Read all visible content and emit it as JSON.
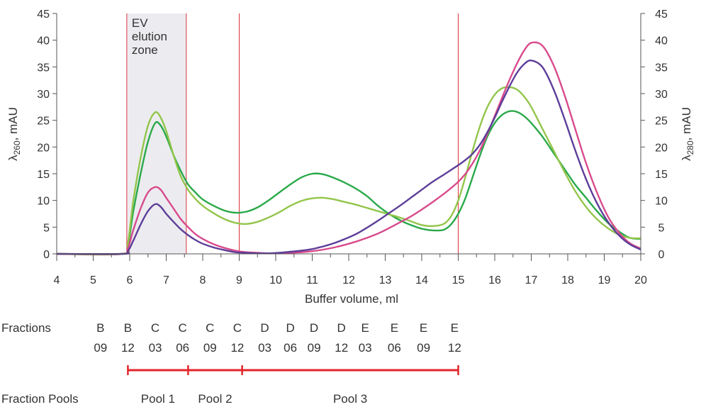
{
  "chart_data": {
    "type": "line",
    "xlabel": "Buffer volume, ml",
    "ylabel_left": {
      "main": "λ",
      "sub": "260",
      "unit": ", mAU"
    },
    "ylabel_right": {
      "main": "λ",
      "sub": "280",
      "unit": ", mAU"
    },
    "xlim": [
      4,
      20
    ],
    "ylim": [
      0,
      45
    ],
    "xticks": [
      4,
      5,
      6,
      7,
      8,
      9,
      10,
      11,
      12,
      13,
      14,
      15,
      16,
      17,
      18,
      19,
      20
    ],
    "yticks": [
      0,
      5,
      10,
      15,
      20,
      25,
      30,
      35,
      40,
      45
    ],
    "grid": false,
    "legend": "none",
    "annotations": {
      "ev_zone": {
        "lines": [
          "EV",
          "elution",
          "zone"
        ],
        "x_start": 5.92,
        "x_end": 7.55
      },
      "vertical_lines": [
        9,
        15
      ]
    },
    "series": [
      {
        "color": "#2aa94a",
        "x": [
          4,
          5.8,
          5.95,
          6.1,
          6.3,
          6.5,
          6.7,
          6.85,
          7.0,
          7.2,
          7.4,
          7.6,
          7.8,
          8.0,
          8.3,
          8.6,
          8.9,
          9.2,
          9.5,
          9.8,
          10.1,
          10.4,
          10.7,
          11.0,
          11.3,
          11.6,
          11.9,
          12.2,
          12.5,
          12.8,
          13.1,
          13.4,
          13.7,
          14.0,
          14.3,
          14.6,
          14.8,
          15.0,
          15.2,
          15.4,
          15.6,
          15.8,
          16.0,
          16.2,
          16.4,
          16.6,
          16.8,
          17.0,
          17.3,
          17.6,
          17.9,
          18.2,
          18.5,
          18.8,
          19.1,
          19.4,
          19.7,
          20.0
        ],
        "values": [
          0,
          0,
          1.5,
          8,
          15,
          21,
          24.5,
          24,
          22,
          18.5,
          15.5,
          13,
          11.5,
          10.2,
          9.0,
          8.1,
          7.7,
          7.9,
          8.7,
          10.0,
          11.5,
          13.0,
          14.3,
          15.0,
          14.9,
          14.2,
          13.3,
          12.2,
          10.8,
          9.0,
          7.5,
          6.3,
          5.4,
          4.7,
          4.4,
          4.5,
          5.5,
          7.5,
          10.5,
          14.5,
          18.5,
          22.0,
          24.5,
          26.0,
          26.7,
          26.6,
          25.8,
          24.5,
          22.0,
          19.0,
          16.0,
          13.0,
          10.5,
          8.0,
          5.8,
          4.2,
          3.0,
          2.8
        ]
      },
      {
        "color": "#93c54b",
        "x": [
          4,
          5.8,
          5.95,
          6.1,
          6.3,
          6.5,
          6.7,
          6.85,
          7.0,
          7.2,
          7.4,
          7.6,
          7.8,
          8.0,
          8.3,
          8.6,
          8.9,
          9.2,
          9.5,
          9.8,
          10.1,
          10.4,
          10.7,
          11.0,
          11.3,
          11.6,
          11.9,
          12.2,
          12.5,
          12.8,
          13.1,
          13.4,
          13.7,
          14.0,
          14.3,
          14.6,
          14.8,
          15.0,
          15.2,
          15.4,
          15.6,
          15.8,
          16.0,
          16.2,
          16.4,
          16.6,
          16.8,
          17.0,
          17.3,
          17.6,
          17.9,
          18.2,
          18.5,
          18.8,
          19.1,
          19.4,
          19.7,
          20.0
        ],
        "values": [
          0,
          0,
          2,
          10,
          18,
          24,
          26.5,
          25.5,
          23,
          18.5,
          14.5,
          12,
          10.3,
          9.0,
          7.6,
          6.5,
          5.8,
          5.6,
          6.0,
          6.8,
          7.8,
          9.0,
          9.9,
          10.4,
          10.5,
          10.2,
          9.7,
          9.2,
          8.6,
          8.0,
          7.4,
          6.8,
          6.1,
          5.4,
          5.2,
          5.6,
          7.0,
          10.0,
          14.5,
          19.5,
          24.0,
          27.5,
          29.8,
          31.0,
          31.2,
          30.8,
          29.5,
          27.5,
          23.5,
          19.5,
          15.5,
          11.8,
          8.8,
          6.5,
          4.8,
          3.6,
          3.0,
          2.9
        ]
      },
      {
        "color": "#d84a8c",
        "x": [
          4,
          5.8,
          5.95,
          6.1,
          6.3,
          6.5,
          6.7,
          6.85,
          7.0,
          7.2,
          7.4,
          7.6,
          7.8,
          8.0,
          8.3,
          8.6,
          8.9,
          9.2,
          9.5,
          9.8,
          10.1,
          10.4,
          10.7,
          11.0,
          11.3,
          11.6,
          11.9,
          12.2,
          12.5,
          12.8,
          13.1,
          13.4,
          13.7,
          14.0,
          14.3,
          14.6,
          14.8,
          15.0,
          15.2,
          15.4,
          15.6,
          15.8,
          16.0,
          16.2,
          16.4,
          16.6,
          16.8,
          17.0,
          17.3,
          17.6,
          17.9,
          18.2,
          18.5,
          18.8,
          19.1,
          19.4,
          19.7,
          20.0
        ],
        "values": [
          0,
          0,
          1,
          4.5,
          8.5,
          11.5,
          12.5,
          12,
          10.5,
          8.5,
          6.5,
          5.0,
          3.7,
          2.8,
          1.8,
          1.1,
          0.6,
          0.3,
          0.2,
          0.1,
          0.1,
          0.2,
          0.3,
          0.5,
          0.8,
          1.2,
          1.7,
          2.3,
          3.0,
          3.8,
          4.8,
          5.9,
          7.0,
          8.3,
          9.7,
          11.2,
          12.3,
          13.5,
          15.0,
          17.0,
          19.5,
          22.5,
          25.8,
          29.2,
          32.5,
          35.5,
          38.0,
          39.5,
          39.0,
          35.5,
          30.0,
          23.5,
          17.0,
          11.5,
          7.0,
          4.0,
          2.0,
          1.0
        ]
      },
      {
        "color": "#5c3d99",
        "x": [
          4,
          5.8,
          5.95,
          6.1,
          6.3,
          6.5,
          6.7,
          6.85,
          7.0,
          7.2,
          7.4,
          7.6,
          7.8,
          8.0,
          8.3,
          8.6,
          8.9,
          9.2,
          9.5,
          9.8,
          10.1,
          10.4,
          10.7,
          11.0,
          11.3,
          11.6,
          11.9,
          12.2,
          12.5,
          12.8,
          13.1,
          13.4,
          13.7,
          14.0,
          14.3,
          14.6,
          14.8,
          15.0,
          15.2,
          15.4,
          15.6,
          15.8,
          16.0,
          16.2,
          16.4,
          16.6,
          16.8,
          17.0,
          17.3,
          17.6,
          17.9,
          18.2,
          18.5,
          18.8,
          19.1,
          19.4,
          19.7,
          20.0
        ],
        "values": [
          0,
          0,
          0.5,
          2.5,
          5.5,
          8.0,
          9.3,
          8.8,
          7.5,
          6.0,
          4.6,
          3.5,
          2.6,
          1.9,
          1.2,
          0.7,
          0.3,
          0.2,
          0.1,
          0.1,
          0.2,
          0.4,
          0.6,
          0.9,
          1.4,
          2.0,
          2.8,
          3.7,
          4.9,
          6.2,
          7.6,
          9.0,
          10.5,
          12.0,
          13.5,
          14.8,
          15.7,
          16.6,
          17.6,
          18.8,
          20.5,
          22.8,
          25.5,
          28.5,
          31.3,
          33.8,
          35.5,
          36.2,
          35.0,
          31.0,
          25.5,
          19.5,
          14.0,
          9.5,
          6.0,
          3.5,
          1.8,
          0.8
        ]
      }
    ]
  },
  "fractions": {
    "label": "Fractions",
    "items": [
      {
        "x": 5.2,
        "row": "B",
        "num": "09"
      },
      {
        "x": 5.95,
        "row": "B",
        "num": "12"
      },
      {
        "x": 6.7,
        "row": "C",
        "num": "03"
      },
      {
        "x": 7.45,
        "row": "C",
        "num": "06"
      },
      {
        "x": 8.2,
        "row": "C",
        "num": "09"
      },
      {
        "x": 8.95,
        "row": "C",
        "num": "12"
      },
      {
        "x": 9.7,
        "row": "D",
        "num": "03"
      },
      {
        "x": 10.4,
        "row": "D",
        "num": "06"
      },
      {
        "x": 11.05,
        "row": "D",
        "num": "09"
      },
      {
        "x": 11.8,
        "row": "D",
        "num": "12"
      },
      {
        "x": 12.45,
        "row": "E",
        "num": "03"
      },
      {
        "x": 13.25,
        "row": "E",
        "num": "06"
      },
      {
        "x": 14.05,
        "row": "E",
        "num": "09"
      },
      {
        "x": 14.9,
        "row": "E",
        "num": "12"
      }
    ]
  },
  "pools": {
    "label": "Fraction Pools",
    "color": "#e1252b",
    "items": [
      {
        "name": "Pool 1",
        "start": 5.95,
        "end": 7.6
      },
      {
        "name": "Pool 2",
        "start": 7.6,
        "end": 9.08
      },
      {
        "name": "Pool 3",
        "start": 9.08,
        "end": 15.0
      }
    ]
  }
}
